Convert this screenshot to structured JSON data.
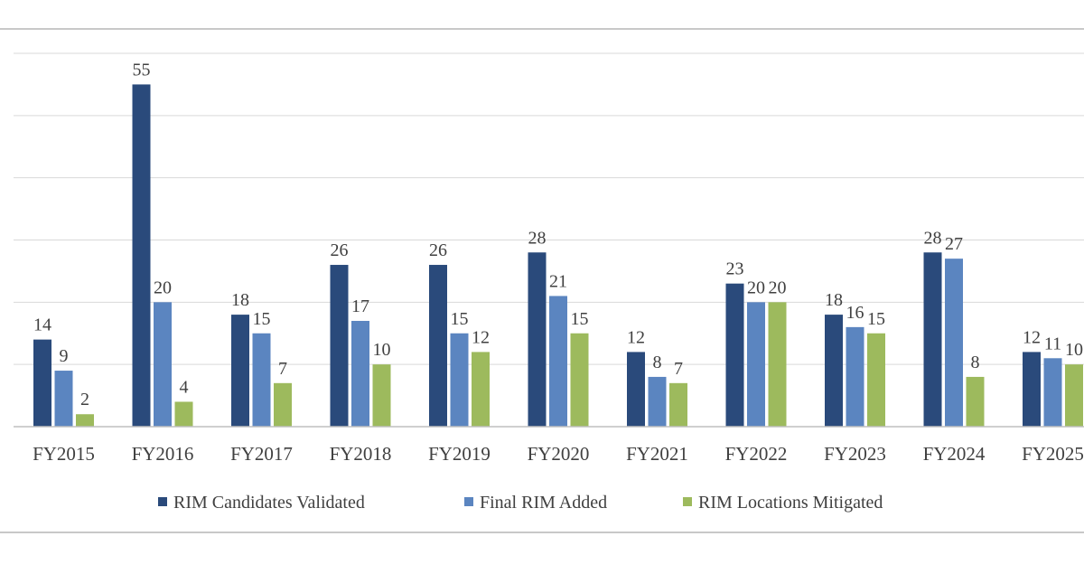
{
  "chart_data": {
    "type": "bar",
    "categories": [
      "FY2015",
      "FY2016",
      "FY2017",
      "FY2018",
      "FY2019",
      "FY2020",
      "FY2021",
      "FY2022",
      "FY2023",
      "FY2024",
      "FY2025"
    ],
    "series": [
      {
        "name": "RIM Candidates Validated",
        "color": "#2a4a7b",
        "values": [
          14,
          55,
          18,
          26,
          26,
          28,
          12,
          23,
          18,
          28,
          12
        ]
      },
      {
        "name": "Final RIM Added",
        "color": "#5b85c0",
        "values": [
          9,
          20,
          15,
          17,
          15,
          21,
          8,
          20,
          16,
          27,
          11
        ]
      },
      {
        "name": "RIM Locations Mitigated",
        "color": "#9dba5d",
        "values": [
          2,
          4,
          7,
          10,
          12,
          15,
          7,
          20,
          15,
          8,
          10
        ]
      }
    ],
    "ylim": [
      0,
      60
    ],
    "grid": true,
    "legend_position": "bottom",
    "data_labels": true
  }
}
